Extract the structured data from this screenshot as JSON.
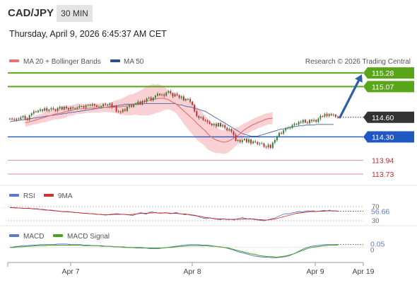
{
  "header": {
    "pair": "CAD/JPY",
    "timeframe": "30 MIN",
    "datetime": "Thursday, April 9, 2026 6:45:37 AM CET"
  },
  "legend": {
    "ma20": "MA 20 + Bollinger Bands",
    "ma50": "MA 50",
    "credit": "Research © 2026 Trading Central",
    "rsi": "RSI",
    "rsi_ma": "9MA",
    "macd": "MACD",
    "macd_signal": "MACD Signal"
  },
  "colors": {
    "bull": "#2e7d32",
    "bear": "#c62828",
    "ma20": "#e57373",
    "band": "#f8c9cc",
    "ma50": "#5470a8",
    "resistance": "#5aa61b",
    "support": "#1f57c3",
    "minor": "#e28a92",
    "arrow": "#2e5ea6",
    "current": "#333333",
    "macd": "#5b7ccc",
    "signal": "#4ca31a"
  },
  "chart_data": [
    {
      "type": "candlestick",
      "x_labels": [
        "Apr 7",
        "Apr 8",
        "Apr 9",
        "Apr 19"
      ],
      "ylim": [
        113.6,
        115.4
      ],
      "current_price": "114.60",
      "levels": [
        {
          "label": "115.28",
          "value": 115.28,
          "kind": "resistance"
        },
        {
          "label": "115.07",
          "value": 115.07,
          "kind": "resistance"
        },
        {
          "label": "114.30",
          "value": 114.3,
          "kind": "support"
        },
        {
          "label": "113.94",
          "value": 113.94,
          "kind": "minor"
        },
        {
          "label": "113.73",
          "value": 113.73,
          "kind": "minor"
        }
      ],
      "close": [
        114.58,
        114.57,
        114.56,
        114.58,
        114.57,
        114.6,
        114.62,
        114.58,
        114.56,
        114.63,
        114.66,
        114.69,
        114.68,
        114.7,
        114.72,
        114.7,
        114.74,
        114.7,
        114.72,
        114.74,
        114.72,
        114.7,
        114.74,
        114.76,
        114.72,
        114.76,
        114.74,
        114.72,
        114.75,
        114.74,
        114.74,
        114.75,
        114.77,
        114.77,
        114.75,
        114.78,
        114.79,
        114.78,
        114.8,
        114.78,
        114.76,
        114.76,
        114.77,
        114.8,
        114.79,
        114.79,
        114.81,
        114.76,
        114.77,
        114.69,
        114.69,
        114.68,
        114.72,
        114.7,
        114.76,
        114.78,
        114.76,
        114.8,
        114.81,
        114.84,
        114.8,
        114.85,
        114.84,
        114.89,
        114.9,
        114.86,
        114.9,
        114.93,
        114.96,
        114.94,
        114.95,
        114.93,
        114.98,
        115.0,
        114.97,
        114.92,
        114.96,
        114.94,
        114.9,
        114.92,
        114.86,
        114.88,
        114.88,
        114.84,
        114.79,
        114.69,
        114.62,
        114.59,
        114.6,
        114.56,
        114.55,
        114.53,
        114.5,
        114.48,
        114.5,
        114.46,
        114.51,
        114.46,
        114.48,
        114.44,
        114.4,
        114.42,
        114.38,
        114.33,
        114.24,
        114.25,
        114.22,
        114.25,
        114.27,
        114.22,
        114.26,
        114.2,
        114.23,
        114.22,
        114.19,
        114.2,
        114.2,
        114.15,
        114.14,
        114.18,
        114.13,
        114.21,
        114.25,
        114.31,
        114.36,
        114.35,
        114.4,
        114.43,
        114.43,
        114.44,
        114.48,
        114.5,
        114.49,
        114.53,
        114.52,
        114.56,
        114.52,
        114.51,
        114.56,
        114.54,
        114.56,
        114.53,
        114.58,
        114.62,
        114.61,
        114.65,
        114.62,
        114.65,
        114.63,
        114.64,
        114.61,
        114.6
      ],
      "ma20_start": 7,
      "ma20": [
        114.52,
        114.52,
        114.53,
        114.54,
        114.55,
        114.56,
        114.57,
        114.58,
        114.59,
        114.6,
        114.61,
        114.62,
        114.63,
        114.64,
        114.65,
        114.66,
        114.66,
        114.67,
        114.68,
        114.69,
        114.7,
        114.7,
        114.71,
        114.72,
        114.73,
        114.73,
        114.73,
        114.73,
        114.73,
        114.74,
        114.74,
        114.74,
        114.74,
        114.74,
        114.74,
        114.75,
        114.75,
        114.75,
        114.75,
        114.75,
        114.75,
        114.76,
        114.76,
        114.76,
        114.76,
        114.77,
        114.77,
        114.78,
        114.79,
        114.79,
        114.8,
        114.81,
        114.81,
        114.82,
        114.83,
        114.84,
        114.85,
        114.86,
        114.87,
        114.88,
        114.88,
        114.89,
        114.89,
        114.89,
        114.89,
        114.88,
        114.87,
        114.85,
        114.83,
        114.82,
        114.79,
        114.76,
        114.73,
        114.7,
        114.67,
        114.64,
        114.61,
        114.58,
        114.55,
        114.51,
        114.48,
        114.45,
        114.42,
        114.39,
        114.35,
        114.32,
        114.29,
        114.27,
        114.25,
        114.24,
        114.23,
        114.22,
        114.22,
        114.23,
        114.24,
        114.26,
        114.28,
        114.3,
        114.32,
        114.35,
        114.38,
        114.41,
        114.43,
        114.45,
        114.47,
        114.49,
        114.5,
        114.52,
        114.53,
        114.54,
        114.56,
        114.57,
        114.58,
        114.58,
        114.59
      ],
      "bb_width": [
        0.06,
        0.06,
        0.06,
        0.06,
        0.06,
        0.07,
        0.07,
        0.07,
        0.07,
        0.08,
        0.08,
        0.08,
        0.08,
        0.08,
        0.08,
        0.09,
        0.09,
        0.09,
        0.09,
        0.09,
        0.08,
        0.08,
        0.08,
        0.08,
        0.08,
        0.08,
        0.08,
        0.07,
        0.07,
        0.07,
        0.07,
        0.07,
        0.07,
        0.07,
        0.07,
        0.07,
        0.07,
        0.07,
        0.07,
        0.07,
        0.08,
        0.09,
        0.1,
        0.11,
        0.12,
        0.13,
        0.14,
        0.15,
        0.16,
        0.16,
        0.16,
        0.17,
        0.18,
        0.19,
        0.2,
        0.21,
        0.22,
        0.23,
        0.23,
        0.23,
        0.22,
        0.22,
        0.21,
        0.2,
        0.18,
        0.16,
        0.15,
        0.14,
        0.14,
        0.14,
        0.15,
        0.16,
        0.18,
        0.2,
        0.21,
        0.22,
        0.23,
        0.24,
        0.25,
        0.25,
        0.25,
        0.25,
        0.24,
        0.24,
        0.24,
        0.23,
        0.22,
        0.21,
        0.2,
        0.19,
        0.18,
        0.18,
        0.18,
        0.18,
        0.17,
        0.16,
        0.15,
        0.14,
        0.13,
        0.12,
        0.11,
        0.1,
        0.09,
        0.09,
        0.09,
        0.09,
        0.09,
        0.09,
        0.09,
        0.09,
        0.09,
        0.09,
        0.09,
        0.09,
        0.09
      ],
      "ma50_start": 0,
      "ma50": [
        114.53,
        114.54,
        114.54,
        114.55,
        114.55,
        114.56,
        114.56,
        114.57,
        114.57,
        114.58,
        114.58,
        114.59,
        114.59,
        114.6,
        114.6,
        114.61,
        114.61,
        114.62,
        114.62,
        114.63,
        114.63,
        114.64,
        114.64,
        114.65,
        114.65,
        114.66,
        114.66,
        114.67,
        114.67,
        114.68,
        114.68,
        114.69,
        114.69,
        114.7,
        114.7,
        114.71,
        114.71,
        114.72,
        114.72,
        114.73,
        114.73,
        114.74,
        114.74,
        114.75,
        114.75,
        114.76,
        114.76,
        114.77,
        114.77,
        114.78,
        114.78,
        114.79,
        114.79,
        114.8,
        114.8,
        114.8,
        114.8,
        114.8,
        114.8,
        114.8,
        114.8,
        114.8,
        114.81,
        114.81,
        114.81,
        114.81,
        114.81,
        114.81,
        114.81,
        114.81,
        114.81,
        114.81,
        114.81,
        114.81,
        114.81,
        114.81,
        114.81,
        114.8,
        114.79,
        114.79,
        114.78,
        114.77,
        114.76,
        114.76,
        114.75,
        114.74,
        114.73,
        114.72,
        114.71,
        114.7,
        114.69,
        114.67,
        114.65,
        114.63,
        114.61,
        114.59,
        114.57,
        114.55,
        114.53,
        114.51,
        114.49,
        114.47,
        114.45,
        114.43,
        114.41,
        114.39,
        114.37,
        114.35,
        114.34,
        114.33,
        114.32,
        114.31,
        114.31,
        114.31,
        114.31,
        114.32,
        114.33,
        114.34,
        114.35,
        114.36,
        114.37,
        114.38,
        114.39,
        114.4,
        114.41,
        114.42,
        114.42,
        114.43,
        114.44,
        114.45,
        114.45,
        114.46,
        114.46,
        114.47,
        114.47,
        114.47,
        114.48,
        114.48,
        114.48,
        114.48,
        114.48,
        114.49,
        114.49,
        114.49,
        114.49,
        114.49,
        114.49,
        114.49,
        114.49,
        114.49
      ],
      "forecast": {
        "from": 114.6,
        "to": 115.28
      }
    },
    {
      "type": "line",
      "name": "RSI",
      "ylim": [
        30,
        70
      ],
      "ticks": [
        "70",
        "30"
      ],
      "last_label": "56.66",
      "rsi": [
        68,
        67,
        67,
        66,
        66,
        65,
        65,
        66,
        64,
        63,
        64,
        62,
        61,
        60,
        60,
        59,
        58,
        58,
        57,
        56,
        55,
        56,
        55,
        54,
        53,
        53,
        52,
        51,
        51,
        50,
        50,
        49,
        48,
        48,
        47,
        46,
        47,
        48,
        49,
        50,
        49,
        48,
        48,
        47,
        46,
        45,
        48,
        51,
        53,
        50,
        49,
        54,
        55,
        53,
        52,
        51,
        52,
        53,
        51,
        50,
        52,
        53,
        50,
        49,
        47,
        48,
        46,
        45,
        44,
        42,
        39,
        37,
        36,
        38,
        37,
        35,
        34,
        33,
        35,
        34,
        33,
        34,
        32,
        35,
        37,
        39,
        37,
        35,
        36,
        34,
        33,
        32,
        31,
        30,
        32,
        34,
        36,
        38,
        41,
        45,
        48,
        50,
        49,
        52,
        53,
        55,
        56,
        55,
        57,
        58,
        57,
        58,
        56,
        57,
        58,
        59,
        58,
        60,
        57,
        58,
        57
      ],
      "ma9": [
        67,
        67,
        66,
        66,
        66,
        65,
        65,
        65,
        64,
        64,
        63,
        62,
        62,
        61,
        60,
        60,
        59,
        58,
        57,
        56,
        56,
        55,
        55,
        54,
        53,
        53,
        52,
        51,
        51,
        50,
        50,
        49,
        48,
        48,
        47,
        47,
        47,
        47,
        48,
        48,
        48,
        48,
        48,
        47,
        47,
        48,
        49,
        50,
        51,
        51,
        51,
        52,
        52,
        53,
        52,
        52,
        52,
        52,
        52,
        51,
        51,
        51,
        50,
        49,
        49,
        48,
        47,
        46,
        45,
        43,
        42,
        40,
        39,
        38,
        37,
        36,
        35,
        35,
        35,
        34,
        34,
        34,
        34,
        34,
        34,
        35,
        35,
        35,
        35,
        35,
        34,
        33,
        33,
        32,
        32,
        33,
        34,
        35,
        37,
        39,
        41,
        43,
        45,
        47,
        49,
        51,
        52,
        53,
        54,
        55,
        56,
        56,
        56,
        57,
        57,
        57,
        58,
        58,
        58,
        58,
        57
      ]
    },
    {
      "type": "line",
      "name": "MACD",
      "ylim": [
        -0.25,
        0.12
      ],
      "ticks": [
        "0"
      ],
      "last_label": "0.05",
      "macd": [
        0.0,
        0.01,
        0.02,
        0.03,
        0.03,
        0.04,
        0.04,
        0.05,
        0.05,
        0.05,
        0.05,
        0.06,
        0.06,
        0.06,
        0.05,
        0.05,
        0.05,
        0.04,
        0.04,
        0.03,
        0.03,
        0.03,
        0.02,
        0.02,
        0.01,
        0.01,
        0.0,
        0.0,
        0.0,
        -0.01,
        -0.01,
        -0.01,
        -0.02,
        -0.02,
        -0.02,
        -0.01,
        0.0,
        0.01,
        0.02,
        0.03,
        0.04,
        0.05,
        0.05,
        0.05,
        0.04,
        0.04,
        0.03,
        0.02,
        0.01,
        0.0,
        -0.02,
        -0.04,
        -0.07,
        -0.09,
        -0.11,
        -0.13,
        -0.15,
        -0.16,
        -0.17,
        -0.17,
        -0.18,
        -0.18,
        -0.17,
        -0.16,
        -0.14,
        -0.11,
        -0.07,
        -0.03,
        0.0,
        0.02,
        0.03,
        0.04,
        0.05,
        0.05,
        0.05,
        0.05
      ],
      "signal": [
        0.0,
        0.0,
        0.01,
        0.01,
        0.02,
        0.02,
        0.03,
        0.03,
        0.03,
        0.04,
        0.04,
        0.04,
        0.04,
        0.04,
        0.04,
        0.04,
        0.04,
        0.03,
        0.03,
        0.03,
        0.03,
        0.02,
        0.02,
        0.02,
        0.01,
        0.01,
        0.01,
        0.0,
        0.0,
        0.0,
        0.0,
        -0.01,
        -0.01,
        -0.01,
        -0.01,
        -0.01,
        0.0,
        0.0,
        0.01,
        0.02,
        0.02,
        0.03,
        0.03,
        0.03,
        0.03,
        0.03,
        0.02,
        0.02,
        0.01,
        0.0,
        -0.01,
        -0.03,
        -0.05,
        -0.07,
        -0.09,
        -0.11,
        -0.12,
        -0.14,
        -0.15,
        -0.16,
        -0.16,
        -0.17,
        -0.16,
        -0.15,
        -0.13,
        -0.11,
        -0.08,
        -0.05,
        -0.02,
        0.0,
        0.01,
        0.02,
        0.03,
        0.04,
        0.04,
        0.04
      ]
    }
  ]
}
